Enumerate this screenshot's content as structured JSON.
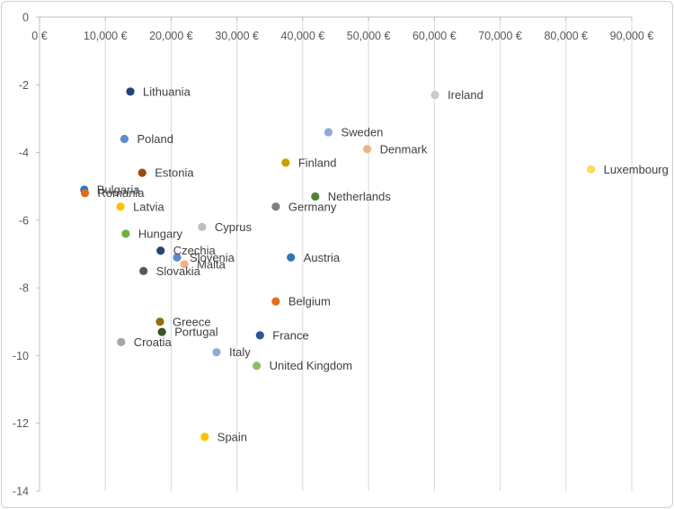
{
  "chart_data": {
    "type": "scatter",
    "title": "",
    "xlabel": "",
    "ylabel": "",
    "xlim": [
      0,
      90000
    ],
    "ylim": [
      -14,
      0
    ],
    "x_ticks": [
      0,
      10000,
      20000,
      30000,
      40000,
      50000,
      60000,
      70000,
      80000,
      90000
    ],
    "x_tick_labels": [
      "0 €",
      "10,000 €",
      "20,000 €",
      "30,000 €",
      "40,000 €",
      "50,000 €",
      "60,000 €",
      "70,000 €",
      "80,000 €",
      "90,000 €"
    ],
    "y_ticks": [
      0,
      -2,
      -4,
      -6,
      -8,
      -10,
      -12,
      -14
    ],
    "y_tick_labels": [
      "0",
      "-2",
      "-4",
      "-6",
      "-8",
      "-10",
      "-12",
      "-14"
    ],
    "grid": "vertical",
    "x_axis_position": "top",
    "points": [
      {
        "label": "Lithuania",
        "x": 13800,
        "y": -2.2,
        "color": "#264478"
      },
      {
        "label": "Ireland",
        "x": 60100,
        "y": -2.3,
        "color": "#c9c9c9"
      },
      {
        "label": "Sweden",
        "x": 43900,
        "y": -3.4,
        "color": "#8faadc"
      },
      {
        "label": "Poland",
        "x": 12900,
        "y": -3.6,
        "color": "#5b8bd0"
      },
      {
        "label": "Denmark",
        "x": 49800,
        "y": -3.9,
        "color": "#f4b183"
      },
      {
        "label": "Finland",
        "x": 37400,
        "y": -4.3,
        "color": "#c9a000"
      },
      {
        "label": "Luxembourg",
        "x": 83800,
        "y": -4.5,
        "color": "#ffd966"
      },
      {
        "label": "Estonia",
        "x": 15600,
        "y": -4.6,
        "color": "#9e480e"
      },
      {
        "label": "Bulgaria",
        "x": 6800,
        "y": -5.1,
        "color": "#2e75b6"
      },
      {
        "label": "Romania",
        "x": 6900,
        "y": -5.2,
        "color": "#e06c1b"
      },
      {
        "label": "Netherlands",
        "x": 41900,
        "y": -5.3,
        "color": "#548235"
      },
      {
        "label": "Latvia",
        "x": 12300,
        "y": -5.6,
        "color": "#ffc000"
      },
      {
        "label": "Germany",
        "x": 35900,
        "y": -5.6,
        "color": "#7f7f7f"
      },
      {
        "label": "Cyprus",
        "x": 24700,
        "y": -6.2,
        "color": "#bfbfbf"
      },
      {
        "label": "Hungary",
        "x": 13100,
        "y": -6.4,
        "color": "#70ad47"
      },
      {
        "label": "Czechia",
        "x": 18400,
        "y": -6.9,
        "color": "#264478"
      },
      {
        "label": "Slovenia",
        "x": 20900,
        "y": -7.1,
        "color": "#5b8bd0"
      },
      {
        "label": "Austria",
        "x": 38200,
        "y": -7.1,
        "color": "#2e75b6"
      },
      {
        "label": "Malta",
        "x": 22000,
        "y": -7.3,
        "color": "#f4b183"
      },
      {
        "label": "Slovakia",
        "x": 15800,
        "y": -7.5,
        "color": "#595959"
      },
      {
        "label": "Belgium",
        "x": 35900,
        "y": -8.4,
        "color": "#e06c1b"
      },
      {
        "label": "Greece",
        "x": 18300,
        "y": -9.0,
        "color": "#946d0a"
      },
      {
        "label": "Portugal",
        "x": 18600,
        "y": -9.3,
        "color": "#375623"
      },
      {
        "label": "France",
        "x": 33500,
        "y": -9.4,
        "color": "#2f5597"
      },
      {
        "label": "Croatia",
        "x": 12400,
        "y": -9.6,
        "color": "#a5a5a5"
      },
      {
        "label": "Italy",
        "x": 26900,
        "y": -9.9,
        "color": "#8faadc"
      },
      {
        "label": "United Kingdom",
        "x": 33000,
        "y": -10.3,
        "color": "#8bc062"
      },
      {
        "label": "Spain",
        "x": 25100,
        "y": -12.4,
        "color": "#ffc000"
      }
    ]
  }
}
